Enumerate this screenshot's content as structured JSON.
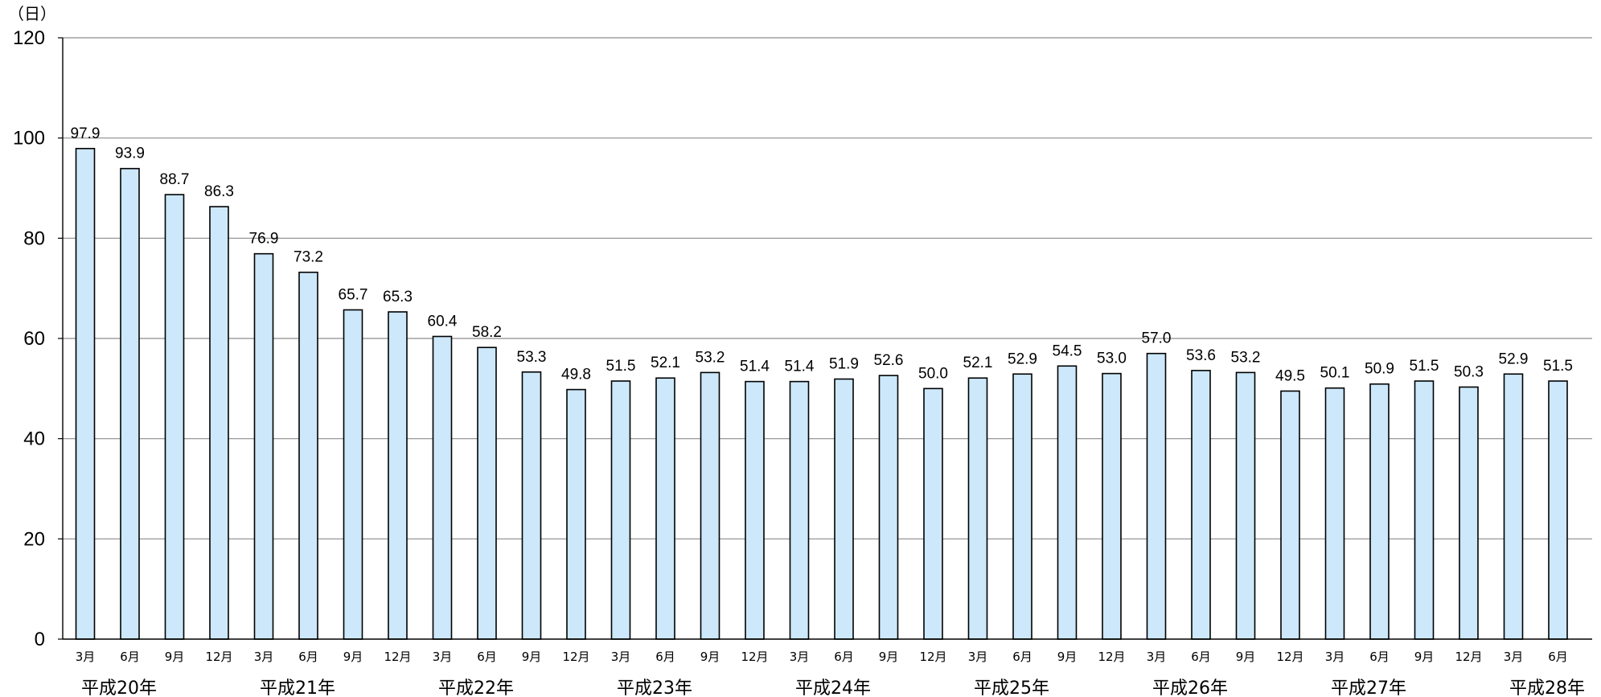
{
  "chart_data": {
    "type": "bar",
    "ylabel_unit": "（日）",
    "ylim": [
      0,
      120
    ],
    "yticks": [
      0,
      20,
      40,
      60,
      80,
      100,
      120
    ],
    "grid": true,
    "bar_color": "#cce8fa",
    "bar_stroke": "#000000",
    "categories": [
      "3月",
      "6月",
      "9月",
      "12月",
      "3月",
      "6月",
      "9月",
      "12月",
      "3月",
      "6月",
      "9月",
      "12月",
      "3月",
      "6月",
      "9月",
      "12月",
      "3月",
      "6月",
      "9月",
      "12月",
      "3月",
      "6月",
      "9月",
      "12月",
      "3月",
      "6月",
      "9月",
      "12月",
      "3月",
      "6月",
      "9月",
      "12月",
      "3月",
      "6月"
    ],
    "values": [
      97.9,
      93.9,
      88.7,
      86.3,
      76.9,
      73.2,
      65.7,
      65.3,
      60.4,
      58.2,
      53.3,
      49.8,
      51.5,
      52.1,
      53.2,
      51.4,
      51.4,
      51.9,
      52.6,
      50.0,
      52.1,
      52.9,
      54.5,
      53.0,
      57.0,
      53.6,
      53.2,
      49.5,
      50.1,
      50.9,
      51.5,
      50.3,
      52.9,
      51.5
    ],
    "value_labels": [
      "97.9",
      "93.9",
      "88.7",
      "86.3",
      "76.9",
      "73.2",
      "65.7",
      "65.3",
      "60.4",
      "58.2",
      "53.3",
      "49.8",
      "51.5",
      "52.1",
      "53.2",
      "51.4",
      "51.4",
      "51.9",
      "52.6",
      "50.0",
      "52.1",
      "52.9",
      "54.5",
      "53.0",
      "57.0",
      "53.6",
      "53.2",
      "49.5",
      "50.1",
      "50.9",
      "51.5",
      "50.3",
      "52.9",
      "51.5"
    ],
    "year_groups": [
      {
        "label": "平成20年",
        "start": 0
      },
      {
        "label": "平成21年",
        "start": 4
      },
      {
        "label": "平成22年",
        "start": 8
      },
      {
        "label": "平成23年",
        "start": 12
      },
      {
        "label": "平成24年",
        "start": 16
      },
      {
        "label": "平成25年",
        "start": 20
      },
      {
        "label": "平成26年",
        "start": 24
      },
      {
        "label": "平成27年",
        "start": 28
      },
      {
        "label": "平成28年",
        "start": 32
      }
    ]
  }
}
